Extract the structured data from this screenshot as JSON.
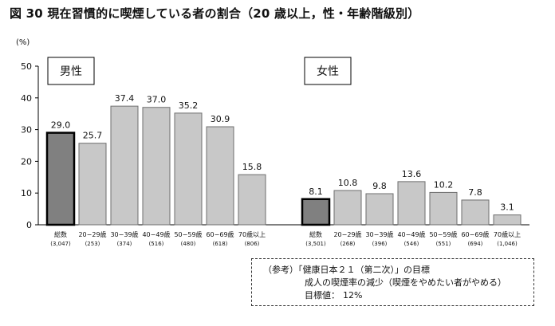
{
  "title": "図 30  現在習慣的に喫煙している者の割合（20 歳以上，性・年齢階級別）",
  "chart_data": {
    "type": "bar",
    "ylabel": "(%)",
    "ylim": [
      0,
      50
    ],
    "yticks": [
      0,
      10,
      20,
      30,
      40,
      50
    ],
    "grid": false,
    "legend": "none",
    "categories": [
      "総数",
      "20−29歳",
      "30−39歳",
      "40−49歳",
      "50−59歳",
      "60−69歳",
      "70歳以上"
    ],
    "groups": [
      {
        "name": "男性",
        "sample_sizes": [
          "(3,047)",
          "(253)",
          "(374)",
          "(516)",
          "(480)",
          "(618)",
          "(806)"
        ],
        "values": [
          29.0,
          25.7,
          37.4,
          37.0,
          35.2,
          30.9,
          15.8
        ],
        "value_labels": [
          "29.0",
          "25.7",
          "37.4",
          "37.0",
          "35.2",
          "30.9",
          "15.8"
        ]
      },
      {
        "name": "女性",
        "sample_sizes": [
          "(3,501)",
          "(268)",
          "(396)",
          "(546)",
          "(551)",
          "(694)",
          "(1,046)"
        ],
        "values": [
          8.1,
          10.8,
          9.8,
          13.6,
          10.2,
          7.8,
          3.1
        ],
        "value_labels": [
          "8.1",
          "10.8",
          "9.8",
          "13.6",
          "10.2",
          "7.8",
          "3.1"
        ]
      }
    ],
    "colors": {
      "total_bar": "#808080",
      "age_bar": "#c8c8c8",
      "total_border": "#000000",
      "age_border": "#6e6e6e"
    }
  },
  "note": {
    "line1": "（参考）「健康日本２１（第二次）」の目標",
    "line2": "成人の喫煙率の減少（喫煙をやめたい者がやめる）",
    "target_label": "目標値：",
    "target_value": "12%"
  }
}
